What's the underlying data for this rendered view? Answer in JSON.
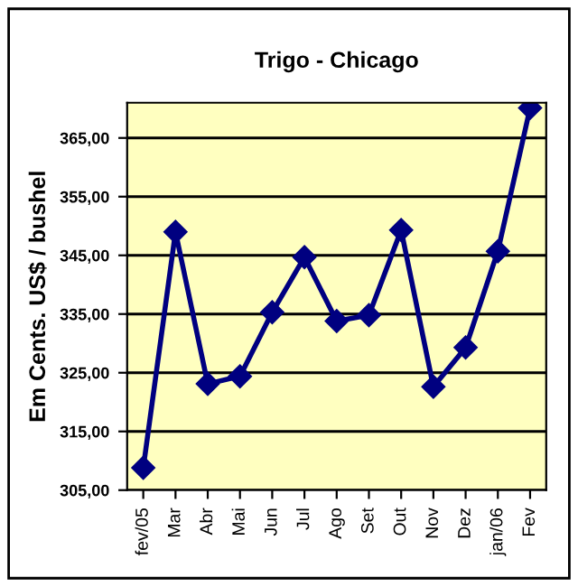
{
  "chart_data": {
    "type": "line",
    "title": "Trigo - Chicago",
    "ylabel": "Em Cents. US$ / bushel",
    "categories": [
      "fev/05",
      "Mar",
      "Abr",
      "Mai",
      "Jun",
      "Jul",
      "Ago",
      "Set",
      "Out",
      "Nov",
      "Dez",
      "jan/06",
      "Fev"
    ],
    "series": [
      {
        "color": "#000080",
        "values": [
          308.8,
          349.0,
          323.1,
          324.4,
          335.3,
          344.7,
          333.8,
          334.8,
          349.3,
          322.6,
          329.3,
          345.7,
          370.1
        ]
      }
    ],
    "ylim": [
      305,
      371
    ],
    "yticks": [
      {
        "value": 305,
        "label": "305,00"
      },
      {
        "value": 315,
        "label": "315,00"
      },
      {
        "value": 325,
        "label": "325,00"
      },
      {
        "value": 335,
        "label": "335,00"
      },
      {
        "value": 345,
        "label": "345,00"
      },
      {
        "value": 355,
        "label": "355,00"
      },
      {
        "value": 365,
        "label": "365,00"
      }
    ],
    "grid": "y",
    "marker": "diamond",
    "line_style": "solid",
    "legend": false
  }
}
